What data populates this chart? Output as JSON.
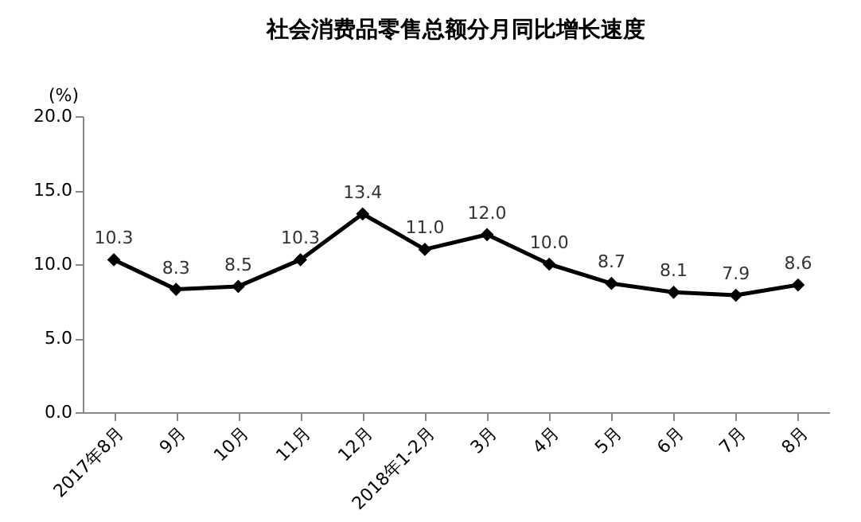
{
  "chart_data": {
    "type": "line",
    "title": "社会消费品零售总额分月同比增长速度",
    "ylabel": "(%)",
    "categories": [
      "2017年8月",
      "9月",
      "10月",
      "11月",
      "12月",
      "2018年1-2月",
      "3月",
      "4月",
      "5月",
      "6月",
      "7月",
      "8月"
    ],
    "series": [
      {
        "color": "#000000",
        "values": [
          10.3,
          8.3,
          8.5,
          10.3,
          13.4,
          11.0,
          12.0,
          10.0,
          8.7,
          8.1,
          7.9,
          8.6
        ],
        "value_labels": [
          "10.3",
          "8.3",
          "8.5",
          "10.3",
          "13.4",
          "11.0",
          "12.0",
          "10.0",
          "8.7",
          "8.1",
          "7.9",
          "8.6"
        ]
      }
    ],
    "ylim": [
      0,
      20
    ],
    "yticks": [
      {
        "value": 0,
        "label": "0.0"
      },
      {
        "value": 5,
        "label": "5.0"
      },
      {
        "value": 10,
        "label": "10.0"
      },
      {
        "value": 15,
        "label": "15.0"
      },
      {
        "value": 20,
        "label": "20.0"
      }
    ],
    "marker": "diamond",
    "line_style": "solid",
    "grid": false,
    "legend": false
  }
}
